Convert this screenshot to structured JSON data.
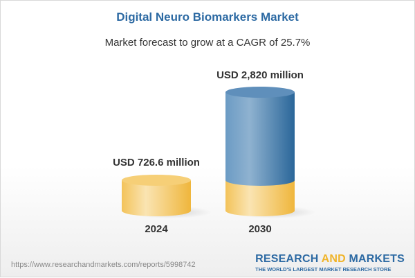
{
  "title": "Digital Neuro Biomarkers Market",
  "subtitle": "Market forecast to grow at a CAGR of 25.7%",
  "chart_data": {
    "type": "bar",
    "style": "3d-cylinder",
    "categories": [
      "2024",
      "2030"
    ],
    "values": [
      726.6,
      2820
    ],
    "data_labels": [
      "USD 726.6 million",
      "USD 2,820 million"
    ],
    "unit": "USD million",
    "colors": {
      "base": "#f3c456",
      "growth": "#3f7fb3"
    }
  },
  "footer": {
    "url": "https://www.researchandmarkets.com/reports/5998742",
    "logo_part1": "RESEARCH ",
    "logo_part2": "AND",
    "logo_part3": " MARKETS",
    "logo_tagline": "THE WORLD'S LARGEST MARKET RESEARCH STORE"
  }
}
